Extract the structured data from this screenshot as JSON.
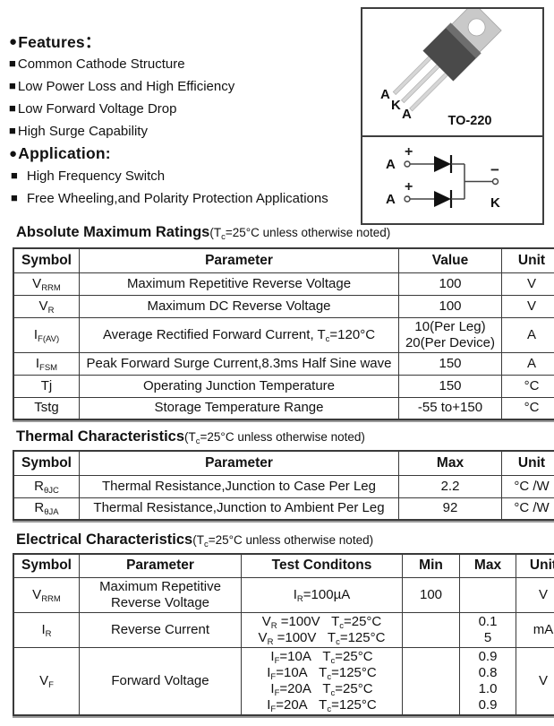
{
  "features": {
    "bullet": "●",
    "heading": "Features：",
    "item_bullet": "■",
    "items": [
      "Common Cathode Structure",
      "Low Power Loss and High Efficiency",
      "Low Forward Voltage Drop",
      "High Surge Capability"
    ]
  },
  "application": {
    "bullet": "●",
    "heading": "Application:",
    "item_bullet": "■",
    "items": [
      "High Frequency Switch",
      "Free Wheeling,and Polarity Protection Applications"
    ]
  },
  "package_panel": {
    "package_name": "TO-220",
    "pin_labels": [
      "A",
      "K",
      "A"
    ],
    "schematic": {
      "anode_labels": [
        "A",
        "A"
      ],
      "cathode_label": "K",
      "plus": "+",
      "minus": "−"
    }
  },
  "colors": {
    "table_border": "#3a3a3a",
    "body_dark": "#4a4a4a",
    "body_bevel": "#6e6e6e",
    "tab_gray": "#c9c9c9",
    "pin_gray": "#d6d6d6"
  },
  "tables": [
    {
      "title": "Absolute Maximum Ratings",
      "subtitle": "(T_{c}=25°C unless otherwise noted)",
      "columns": [
        "Symbol",
        "Parameter",
        "Value",
        "Unit"
      ],
      "rows": [
        [
          "V_{RRM}",
          "Maximum Repetitive Reverse Voltage",
          "100",
          "V"
        ],
        [
          "V_{R}",
          "Maximum DC Reverse Voltage",
          "100",
          "V"
        ],
        [
          "I_{F(AV)}",
          "Average Rectified Forward Current, T_{c}=120°C",
          "10(Per Leg)\n20(Per Device)",
          "A"
        ],
        [
          "I_{FSM}",
          "Peak Forward Surge Current,8.3ms Half Sine wave",
          "150",
          "A"
        ],
        [
          "Tj",
          "Operating Junction Temperature",
          "150",
          "°C"
        ],
        [
          "Tstg",
          "Storage Temperature Range",
          "-55 to+150",
          "°C"
        ]
      ]
    },
    {
      "title": "Thermal Characteristics",
      "subtitle": "(T_{c}=25°C unless otherwise noted)",
      "columns": [
        "Symbol",
        "Parameter",
        "Max",
        "Unit"
      ],
      "rows": [
        [
          "R_{θJC}",
          "Thermal Resistance,Junction to Case Per Leg",
          "2.2",
          "°C /W"
        ],
        [
          "R_{θJA}",
          "Thermal Resistance,Junction to Ambient Per Leg",
          "92",
          "°C /W"
        ]
      ]
    },
    {
      "title": "Electrical Characteristics",
      "subtitle": "(T_{c}=25°C unless otherwise noted)",
      "columns": [
        "Symbol",
        "Parameter",
        "Test Conditons",
        "Min",
        "Max",
        "Unit"
      ],
      "rows": [
        [
          "V_{RRM}",
          "Maximum Repetitive Reverse Voltage",
          "I_{R}=100µA",
          "100",
          "",
          "V"
        ],
        [
          "I_{R}",
          "Reverse Current",
          "V_{R} =100V   T_{c}=25°C\nV_{R} =100V   T_{c}=125°C",
          "",
          "0.1\n5",
          "mA"
        ],
        [
          "V_{F}",
          "Forward Voltage",
          "I_{F}=10A   T_{c}=25°C\nI_{F}=10A   T_{c}=125°C\nI_{F}=20A   T_{c}=25°C\nI_{F}=20A   T_{c}=125°C",
          "",
          "0.9\n0.8\n1.0\n0.9",
          "V"
        ]
      ]
    }
  ]
}
